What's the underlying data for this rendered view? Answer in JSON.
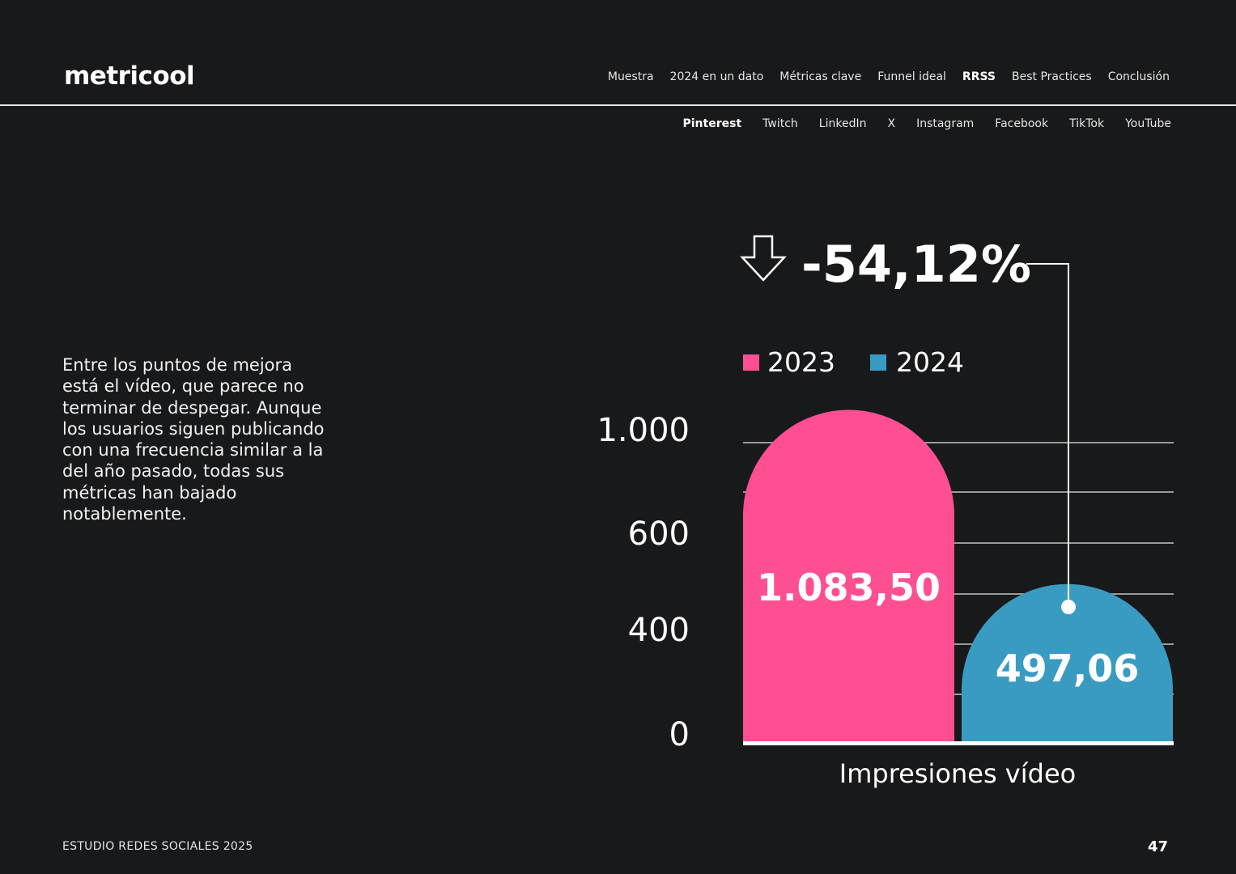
{
  "brand": {
    "logo_text": "metricool"
  },
  "main_nav": {
    "items": [
      "Muestra",
      "2024 en un dato",
      "Métricas clave",
      "Funnel ideal",
      "RRSS",
      "Best Practices",
      "Conclusión"
    ],
    "active": "RRSS"
  },
  "sub_nav": {
    "items": [
      "Pinterest",
      "Twitch",
      "LinkedIn",
      "X",
      "Instagram",
      "Facebook",
      "TikTok",
      "YouTube"
    ],
    "active": "Pinterest"
  },
  "body_text": "Entre los puntos de mejora está el vídeo, que parece no terminar de despegar. Aunque los usuarios siguen publicando con una frecuencia similar a la del año pasado, todas sus métricas han bajado notablemente.",
  "footer": {
    "left": "ESTUDIO REDES SOCIALES 2025",
    "page_number": "47"
  },
  "chart_data": {
    "type": "bar",
    "categories": [
      "Impresiones vídeo"
    ],
    "series": [
      {
        "name": "2023",
        "values": [
          1083.5
        ],
        "label": "1.083,50",
        "color": "#ff4f93"
      },
      {
        "name": "2024",
        "values": [
          497.06
        ],
        "label": "497,06",
        "color": "#3a9bc2"
      }
    ],
    "y_ticks": [
      {
        "value": 0,
        "label": "0"
      },
      {
        "value": 400,
        "label": "400"
      },
      {
        "value": 600,
        "label": "600"
      },
      {
        "value": 1000,
        "label": "1.000"
      }
    ],
    "change": {
      "label": "-54,12%",
      "direction": "down"
    },
    "legend_position": "top",
    "grid": true,
    "xlabel": "Impresiones vídeo"
  }
}
